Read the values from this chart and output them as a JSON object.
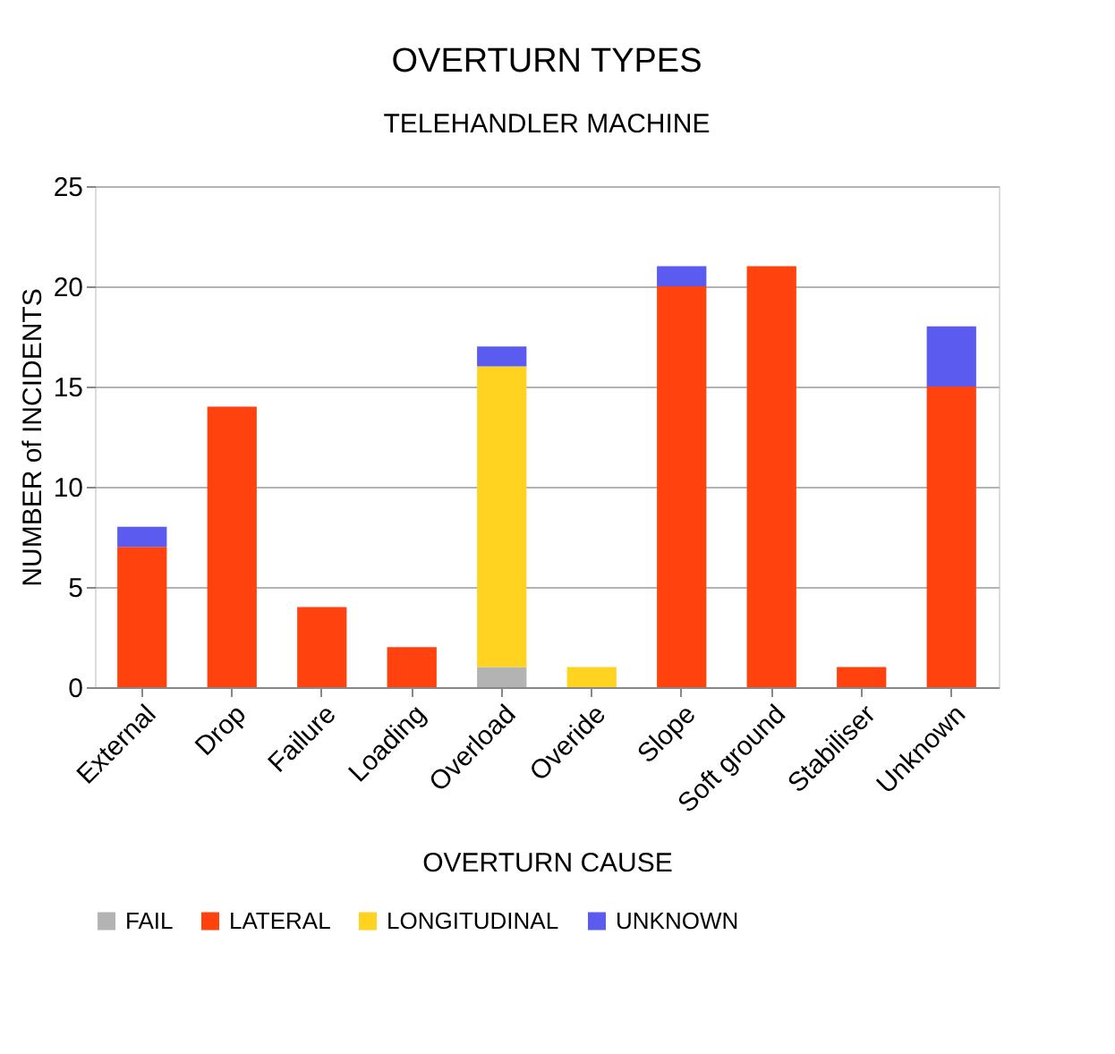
{
  "chart_data": {
    "type": "bar",
    "title": "OVERTURN TYPES",
    "subtitle": "TELEHANDLER MACHINE",
    "xlabel": "OVERTURN CAUSE",
    "ylabel": "NUMBER of INCIDENTS",
    "categories": [
      "External",
      "Drop",
      "Failure",
      "Loading",
      "Overload",
      "Overide",
      "Slope",
      "Soft ground",
      "Stabiliser",
      "Unknown"
    ],
    "stacked": true,
    "series": [
      {
        "name": "FAIL",
        "color": "#b3b3b3",
        "values": [
          0,
          0,
          0,
          0,
          1,
          0,
          0,
          0,
          0,
          0
        ]
      },
      {
        "name": "LATERAL",
        "color": "#ff420e",
        "values": [
          7,
          14,
          4,
          2,
          0,
          0,
          20,
          21,
          1,
          15
        ]
      },
      {
        "name": "LONGITUDINAL",
        "color": "#ffd320",
        "values": [
          0,
          0,
          0,
          0,
          15,
          1,
          0,
          0,
          0,
          0
        ]
      },
      {
        "name": "UNKNOWN",
        "color": "#5b5bef",
        "values": [
          1,
          0,
          0,
          0,
          1,
          0,
          1,
          0,
          0,
          3
        ]
      }
    ],
    "ylim": [
      0,
      25
    ],
    "yticks": [
      0,
      5,
      10,
      15,
      20,
      25
    ],
    "grid": "y",
    "legend": "bottom"
  }
}
